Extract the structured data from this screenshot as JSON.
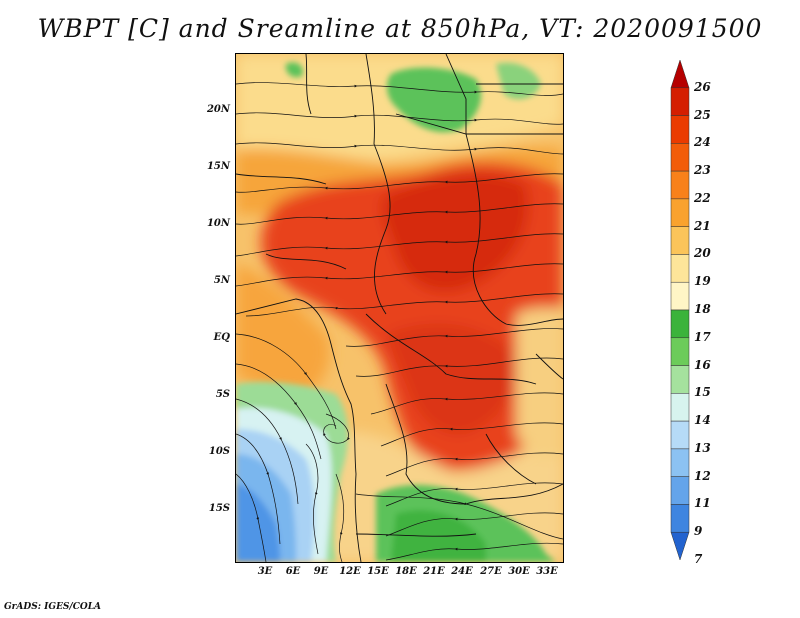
{
  "title": "WBPT [C] and Sreamline at 850hPa, VT: 2020091500",
  "axes": {
    "y_ticks": [
      "20N",
      "15N",
      "10N",
      "5N",
      "EQ",
      "5S",
      "10S",
      "15S"
    ],
    "x_ticks": [
      "3E",
      "6E",
      "9E",
      "12E",
      "15E",
      "18E",
      "21E",
      "24E",
      "27E",
      "30E",
      "33E"
    ]
  },
  "colorbar": {
    "labels": [
      "26",
      "25",
      "24",
      "23",
      "22",
      "21",
      "20",
      "19",
      "18",
      "17",
      "16",
      "15",
      "14",
      "13",
      "12",
      "11",
      "9",
      "7"
    ],
    "colors": [
      "#b50000",
      "#d41e00",
      "#ea3b00",
      "#f25d0a",
      "#f8811a",
      "#f9a22e",
      "#fbc45a",
      "#fde59a",
      "#fff5c6",
      "#3bb33b",
      "#6ccc5a",
      "#a5e29e",
      "#d7f4ee",
      "#b6dbf7",
      "#8cc2f2",
      "#64a4ea",
      "#3e85e0",
      "#2263cf"
    ]
  },
  "credit": "GrADS: IGES/COLA"
}
